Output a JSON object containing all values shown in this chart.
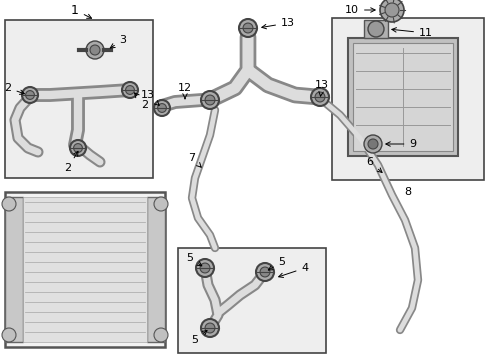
{
  "bg_color": "#ffffff",
  "line_color": "#444444",
  "hose_outer": "#777777",
  "hose_inner": "#cccccc",
  "box_face": "#eeeeee",
  "box_edge": "#444444",
  "rad_face": "#f0f0f0",
  "res_face": "#cccccc",
  "label_fs": 8,
  "dpi": 100,
  "figw": 4.89,
  "figh": 3.6
}
